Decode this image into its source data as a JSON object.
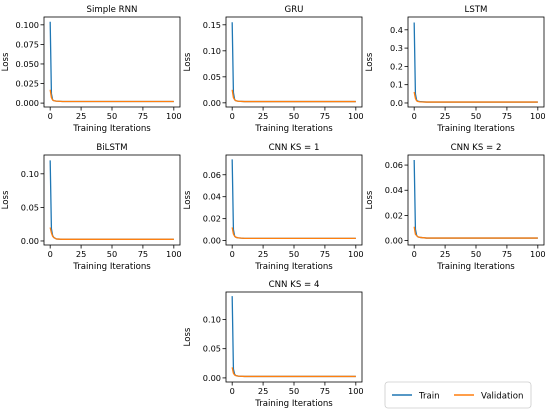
{
  "colors": {
    "train": "#1f77b4",
    "validation": "#ff7f0e",
    "axes": "#000000"
  },
  "legend": {
    "placement": "bottom-right",
    "items": [
      {
        "label": "Train",
        "color": "#1f77b4"
      },
      {
        "label": "Validation",
        "color": "#ff7f0e"
      }
    ]
  },
  "chart_data": [
    {
      "type": "line",
      "title": "Simple RNN",
      "xlabel": "Training Iterations",
      "ylabel": "Loss",
      "xlim": [
        -5,
        105
      ],
      "ylim": [
        -0.005,
        0.11
      ],
      "xticks": [
        0,
        25,
        50,
        75,
        100
      ],
      "xtick_labels": [
        "0",
        "25",
        "50",
        "75",
        "100"
      ],
      "yticks": [
        0.0,
        0.025,
        0.05,
        0.075,
        0.1
      ],
      "ytick_labels": [
        "0.000",
        "0.025",
        "0.050",
        "0.075",
        "0.100"
      ],
      "series": [
        {
          "name": "Train",
          "color": "#1f77b4",
          "x": [
            0,
            1,
            2,
            3,
            5,
            10,
            50,
            100
          ],
          "y": [
            0.104,
            0.012,
            0.004,
            0.003,
            0.0025,
            0.002,
            0.002,
            0.002
          ]
        },
        {
          "name": "Validation",
          "color": "#ff7f0e",
          "x": [
            0,
            1,
            2,
            3,
            5,
            10,
            50,
            100
          ],
          "y": [
            0.017,
            0.007,
            0.004,
            0.003,
            0.0025,
            0.002,
            0.002,
            0.002
          ]
        }
      ]
    },
    {
      "type": "line",
      "title": "GRU",
      "xlabel": "Training Iterations",
      "ylabel": "Loss",
      "xlim": [
        -5,
        105
      ],
      "ylim": [
        -0.008,
        0.165
      ],
      "xticks": [
        0,
        25,
        50,
        75,
        100
      ],
      "xtick_labels": [
        "0",
        "25",
        "50",
        "75",
        "100"
      ],
      "yticks": [
        0.0,
        0.05,
        0.1,
        0.15
      ],
      "ytick_labels": [
        "0.00",
        "0.05",
        "0.10",
        "0.15"
      ],
      "series": [
        {
          "name": "Train",
          "color": "#1f77b4",
          "x": [
            0,
            1,
            2,
            3,
            5,
            10,
            50,
            100
          ],
          "y": [
            0.155,
            0.02,
            0.006,
            0.004,
            0.003,
            0.0025,
            0.0025,
            0.0025
          ]
        },
        {
          "name": "Validation",
          "color": "#ff7f0e",
          "x": [
            0,
            1,
            2,
            3,
            5,
            10,
            50,
            100
          ],
          "y": [
            0.025,
            0.01,
            0.006,
            0.004,
            0.003,
            0.0025,
            0.0025,
            0.0025
          ]
        }
      ]
    },
    {
      "type": "line",
      "title": "LSTM",
      "xlabel": "Training Iterations",
      "ylabel": "Loss",
      "xlim": [
        -5,
        105
      ],
      "ylim": [
        -0.022,
        0.47
      ],
      "xticks": [
        0,
        25,
        50,
        75,
        100
      ],
      "xtick_labels": [
        "0",
        "25",
        "50",
        "75",
        "100"
      ],
      "yticks": [
        0.0,
        0.1,
        0.2,
        0.3,
        0.4
      ],
      "ytick_labels": [
        "0.0",
        "0.1",
        "0.2",
        "0.3",
        "0.4"
      ],
      "series": [
        {
          "name": "Train",
          "color": "#1f77b4",
          "x": [
            0,
            1,
            2,
            3,
            5,
            10,
            50,
            100
          ],
          "y": [
            0.44,
            0.05,
            0.015,
            0.01,
            0.007,
            0.005,
            0.005,
            0.005
          ]
        },
        {
          "name": "Validation",
          "color": "#ff7f0e",
          "x": [
            0,
            1,
            2,
            3,
            5,
            10,
            50,
            100
          ],
          "y": [
            0.06,
            0.025,
            0.012,
            0.008,
            0.006,
            0.005,
            0.005,
            0.005
          ]
        }
      ]
    },
    {
      "type": "line",
      "title": "BiLSTM",
      "xlabel": "Training Iterations",
      "ylabel": "Loss",
      "xlim": [
        -5,
        105
      ],
      "ylim": [
        -0.006,
        0.128
      ],
      "xticks": [
        0,
        25,
        50,
        75,
        100
      ],
      "xtick_labels": [
        "0",
        "25",
        "50",
        "75",
        "100"
      ],
      "yticks": [
        0.0,
        0.05,
        0.1
      ],
      "ytick_labels": [
        "0.00",
        "0.05",
        "0.10"
      ],
      "series": [
        {
          "name": "Train",
          "color": "#1f77b4",
          "x": [
            0,
            1,
            2,
            3,
            5,
            10,
            50,
            100
          ],
          "y": [
            0.12,
            0.018,
            0.008,
            0.005,
            0.003,
            0.0025,
            0.0025,
            0.0025
          ]
        },
        {
          "name": "Validation",
          "color": "#ff7f0e",
          "x": [
            0,
            1,
            2,
            3,
            5,
            10,
            50,
            100
          ],
          "y": [
            0.02,
            0.012,
            0.007,
            0.005,
            0.003,
            0.0025,
            0.0025,
            0.0025
          ]
        }
      ]
    },
    {
      "type": "line",
      "title": "CNN KS = 1",
      "xlabel": "Training Iterations",
      "ylabel": "Loss",
      "xlim": [
        -5,
        105
      ],
      "ylim": [
        -0.004,
        0.078
      ],
      "xticks": [
        0,
        25,
        50,
        75,
        100
      ],
      "xtick_labels": [
        "0",
        "25",
        "50",
        "75",
        "100"
      ],
      "yticks": [
        0.0,
        0.02,
        0.04,
        0.06
      ],
      "ytick_labels": [
        "0.00",
        "0.02",
        "0.04",
        "0.06"
      ],
      "series": [
        {
          "name": "Train",
          "color": "#1f77b4",
          "x": [
            0,
            1,
            2,
            3,
            5,
            10,
            50,
            100
          ],
          "y": [
            0.074,
            0.01,
            0.004,
            0.003,
            0.0025,
            0.002,
            0.002,
            0.002
          ]
        },
        {
          "name": "Validation",
          "color": "#ff7f0e",
          "x": [
            0,
            1,
            2,
            3,
            5,
            10,
            50,
            100
          ],
          "y": [
            0.012,
            0.006,
            0.004,
            0.003,
            0.0025,
            0.002,
            0.002,
            0.002
          ]
        }
      ]
    },
    {
      "type": "line",
      "title": "CNN KS = 2",
      "xlabel": "Training Iterations",
      "ylabel": "Loss",
      "xlim": [
        -5,
        105
      ],
      "ylim": [
        -0.0035,
        0.068
      ],
      "xticks": [
        0,
        25,
        50,
        75,
        100
      ],
      "xtick_labels": [
        "0",
        "25",
        "50",
        "75",
        "100"
      ],
      "yticks": [
        0.0,
        0.02,
        0.04,
        0.06
      ],
      "ytick_labels": [
        "0.00",
        "0.02",
        "0.04",
        "0.06"
      ],
      "series": [
        {
          "name": "Train",
          "color": "#1f77b4",
          "x": [
            0,
            1,
            2,
            3,
            5,
            10,
            50,
            100
          ],
          "y": [
            0.064,
            0.009,
            0.004,
            0.003,
            0.0025,
            0.002,
            0.002,
            0.002
          ]
        },
        {
          "name": "Validation",
          "color": "#ff7f0e",
          "x": [
            0,
            1,
            2,
            3,
            5,
            10,
            50,
            100
          ],
          "y": [
            0.011,
            0.005,
            0.004,
            0.003,
            0.0025,
            0.002,
            0.002,
            0.002
          ]
        }
      ]
    },
    {
      "type": "line",
      "title": "CNN KS = 4",
      "xlabel": "Training Iterations",
      "ylabel": "Loss",
      "xlim": [
        -5,
        105
      ],
      "ylim": [
        -0.007,
        0.147
      ],
      "xticks": [
        0,
        25,
        50,
        75,
        100
      ],
      "xtick_labels": [
        "0",
        "25",
        "50",
        "75",
        "100"
      ],
      "yticks": [
        0.0,
        0.05,
        0.1
      ],
      "ytick_labels": [
        "0.00",
        "0.05",
        "0.10"
      ],
      "series": [
        {
          "name": "Train",
          "color": "#1f77b4",
          "x": [
            0,
            1,
            2,
            3,
            5,
            10,
            50,
            100
          ],
          "y": [
            0.14,
            0.015,
            0.006,
            0.004,
            0.003,
            0.0025,
            0.0025,
            0.0025
          ]
        },
        {
          "name": "Validation",
          "color": "#ff7f0e",
          "x": [
            0,
            1,
            2,
            3,
            5,
            10,
            50,
            100
          ],
          "y": [
            0.018,
            0.008,
            0.005,
            0.004,
            0.003,
            0.0025,
            0.0025,
            0.0025
          ]
        }
      ]
    }
  ]
}
